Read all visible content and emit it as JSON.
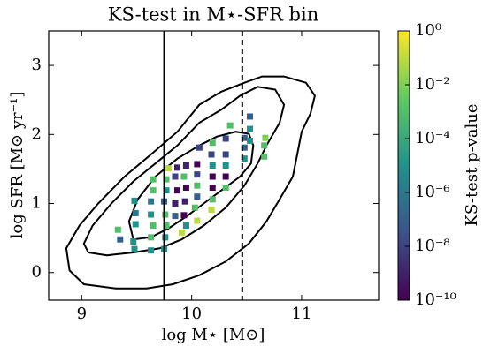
{
  "chart_data": {
    "type": "scatter",
    "title": "KS-test in M⋆-SFR bin",
    "x_label": "log M⋆ [M⊙]",
    "y_label": "log SFR [M⊙ yr⁻¹]",
    "xlim": [
      8.7,
      11.7
    ],
    "ylim": [
      -0.4,
      3.5
    ],
    "xticks": [
      9,
      10,
      11
    ],
    "yticks": [
      0,
      1,
      2,
      3
    ],
    "colormap": "viridis",
    "x": [
      9.33,
      9.35,
      9.47,
      9.49,
      9.49,
      9.48,
      9.48,
      9.63,
      9.63,
      9.65,
      9.63,
      9.63,
      9.65,
      9.65,
      9.75,
      9.76,
      9.77,
      9.76,
      9.75,
      9.77,
      9.77,
      9.79,
      9.85,
      9.85,
      9.87,
      9.85,
      9.87,
      9.91,
      9.95,
      9.93,
      9.94,
      9.95,
      9.93,
      9.95,
      10.05,
      10.03,
      10.05,
      10.05,
      10.05,
      10.05,
      10.07,
      10.18,
      10.19,
      10.19,
      10.19,
      10.19,
      10.18,
      10.19,
      10.31,
      10.31,
      10.31,
      10.31,
      10.31,
      10.35,
      10.48,
      10.48,
      10.48,
      10.53,
      10.53,
      10.53,
      10.66,
      10.66,
      10.67
    ],
    "y": [
      0.62,
      0.48,
      0.45,
      0.7,
      0.86,
      1.04,
      0.34,
      0.32,
      0.51,
      0.68,
      0.84,
      1.03,
      1.19,
      1.35,
      0.34,
      0.51,
      0.68,
      0.84,
      1.03,
      1.19,
      1.35,
      1.51,
      0.82,
      1.0,
      1.19,
      1.39,
      1.52,
      0.58,
      0.68,
      0.83,
      1.03,
      1.23,
      1.39,
      1.55,
      0.75,
      0.94,
      1.1,
      1.26,
      1.42,
      1.57,
      1.81,
      0.91,
      1.06,
      1.23,
      1.39,
      1.55,
      1.71,
      1.88,
      1.23,
      1.39,
      1.55,
      1.71,
      1.94,
      2.13,
      1.65,
      1.81,
      1.95,
      2.26,
      1.91,
      2.08,
      1.68,
      1.84,
      1.95
    ],
    "values": [
      0.001,
      1e-07,
      1e-05,
      1e-05,
      1e-06,
      1e-05,
      1e-05,
      1e-05,
      0.001,
      0.001,
      1e-05,
      1e-06,
      0.001,
      0.001,
      1e-05,
      1e-05,
      0.001,
      0.001,
      1e-07,
      1e-05,
      0.001,
      0.1,
      1e-07,
      1e-09,
      1e-10,
      1e-08,
      1e-09,
      0.1,
      1e-05,
      1e-10,
      1e-09,
      1e-10,
      0.001,
      1e-09,
      0.1,
      0.001,
      1e-07,
      0.001,
      1e-08,
      1e-10,
      1e-08,
      0.1,
      0.001,
      1e-10,
      1e-10,
      1e-05,
      1e-08,
      0.001,
      0.001,
      1e-10,
      1e-05,
      1e-08,
      1e-08,
      0.001,
      1e-05,
      1e-07,
      1e-07,
      1e-07,
      1e-05,
      1e-05,
      0.001,
      0.001,
      0.01
    ],
    "contours": [
      {
        "x": [
          9.47,
          9.43,
          9.51,
          9.67,
          9.87,
          10.07,
          10.23,
          10.4,
          10.52,
          10.56,
          10.54,
          10.44,
          10.27,
          10.11,
          9.95,
          9.79,
          9.63
        ],
        "y": [
          0.48,
          0.74,
          1.06,
          1.39,
          1.65,
          1.84,
          1.97,
          2.04,
          2.01,
          1.84,
          1.58,
          1.39,
          1.19,
          1.0,
          0.81,
          0.64,
          0.51
        ]
      },
      {
        "x": [
          9.02,
          9.1,
          9.27,
          9.47,
          9.67,
          9.87,
          10.07,
          10.27,
          10.44,
          10.6,
          10.76,
          10.84,
          10.8,
          10.68,
          10.6,
          10.48,
          10.31,
          10.11,
          9.91,
          9.71,
          9.47,
          9.23,
          9.06
        ],
        "y": [
          0.42,
          0.68,
          1.0,
          1.32,
          1.58,
          1.84,
          2.17,
          2.36,
          2.56,
          2.69,
          2.65,
          2.43,
          2.17,
          1.84,
          1.58,
          1.26,
          0.94,
          0.68,
          0.48,
          0.35,
          0.29,
          0.25,
          0.29
        ]
      },
      {
        "x": [
          8.86,
          8.98,
          9.15,
          9.39,
          9.63,
          9.87,
          10.07,
          10.27,
          10.48,
          10.64,
          10.84,
          11.04,
          11.12,
          11.08,
          11.0,
          10.96,
          10.92,
          10.8,
          10.68,
          10.52,
          10.31,
          10.07,
          9.83,
          9.59,
          9.31,
          9.02,
          8.89
        ],
        "y": [
          0.35,
          0.68,
          1.0,
          1.39,
          1.71,
          2.04,
          2.43,
          2.62,
          2.75,
          2.84,
          2.84,
          2.75,
          2.56,
          2.3,
          2.04,
          1.71,
          1.39,
          1.06,
          0.74,
          0.42,
          0.16,
          -0.04,
          -0.17,
          -0.23,
          -0.23,
          -0.17,
          0.03
        ]
      }
    ],
    "vlines": [
      {
        "x": 9.75,
        "style": "solid"
      },
      {
        "x": 10.46,
        "style": "dashed"
      }
    ],
    "colorbar": {
      "label": "KS-test p-value",
      "scale": "log",
      "lim": [
        1e-10,
        1
      ],
      "ticks": [
        {
          "value": 1e-10,
          "label": "10⁻¹⁰"
        },
        {
          "value": 1e-08,
          "label": "10⁻⁸"
        },
        {
          "value": 1e-06,
          "label": "10⁻⁶"
        },
        {
          "value": 0.0001,
          "label": "10⁻⁴"
        },
        {
          "value": 0.01,
          "label": "10⁻²"
        },
        {
          "value": 1,
          "label": "10⁰"
        }
      ]
    }
  }
}
